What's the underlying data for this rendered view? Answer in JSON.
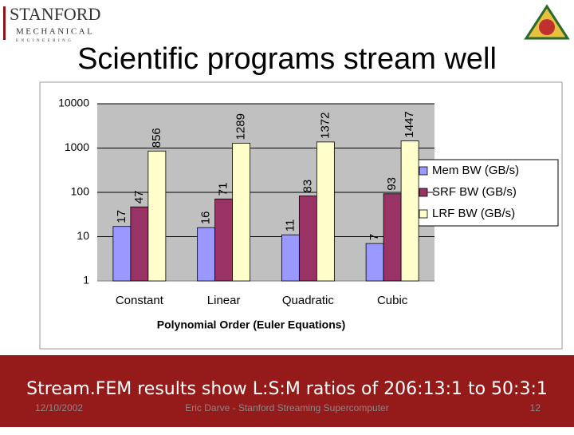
{
  "logo": {
    "line1": "STANFORD",
    "line2": "MECHANICAL",
    "line3": "ENGINEERING"
  },
  "chart_data": {
    "type": "bar",
    "title": "Scientific programs stream well",
    "x_label": "Polynomial Order (Euler Equations)",
    "categories": [
      "Constant",
      "Linear",
      "Quadratic",
      "Cubic"
    ],
    "series": [
      {
        "name": "Mem BW (GB/s)",
        "color": "#9999ff",
        "values": [
          17,
          16,
          11,
          7
        ]
      },
      {
        "name": "SRF BW (GB/s)",
        "color": "#993366",
        "values": [
          47,
          71,
          83,
          93
        ]
      },
      {
        "name": "LRF BW (GB/s)",
        "color": "#ffffcc",
        "values": [
          856,
          1289,
          1372,
          1447
        ]
      }
    ],
    "ylim": [
      1,
      10000
    ],
    "yticks": [
      1,
      10,
      100,
      1000,
      10000
    ],
    "log_scale": true,
    "grid": true,
    "legend": "right"
  },
  "footer": {
    "message": "Stream.FEM results show L:S:M ratios of 206:13:1 to 50:3:1",
    "date": "12/10/2002",
    "author": "Eric Darve - Stanford Streaming Supercomputer",
    "page": "12"
  }
}
